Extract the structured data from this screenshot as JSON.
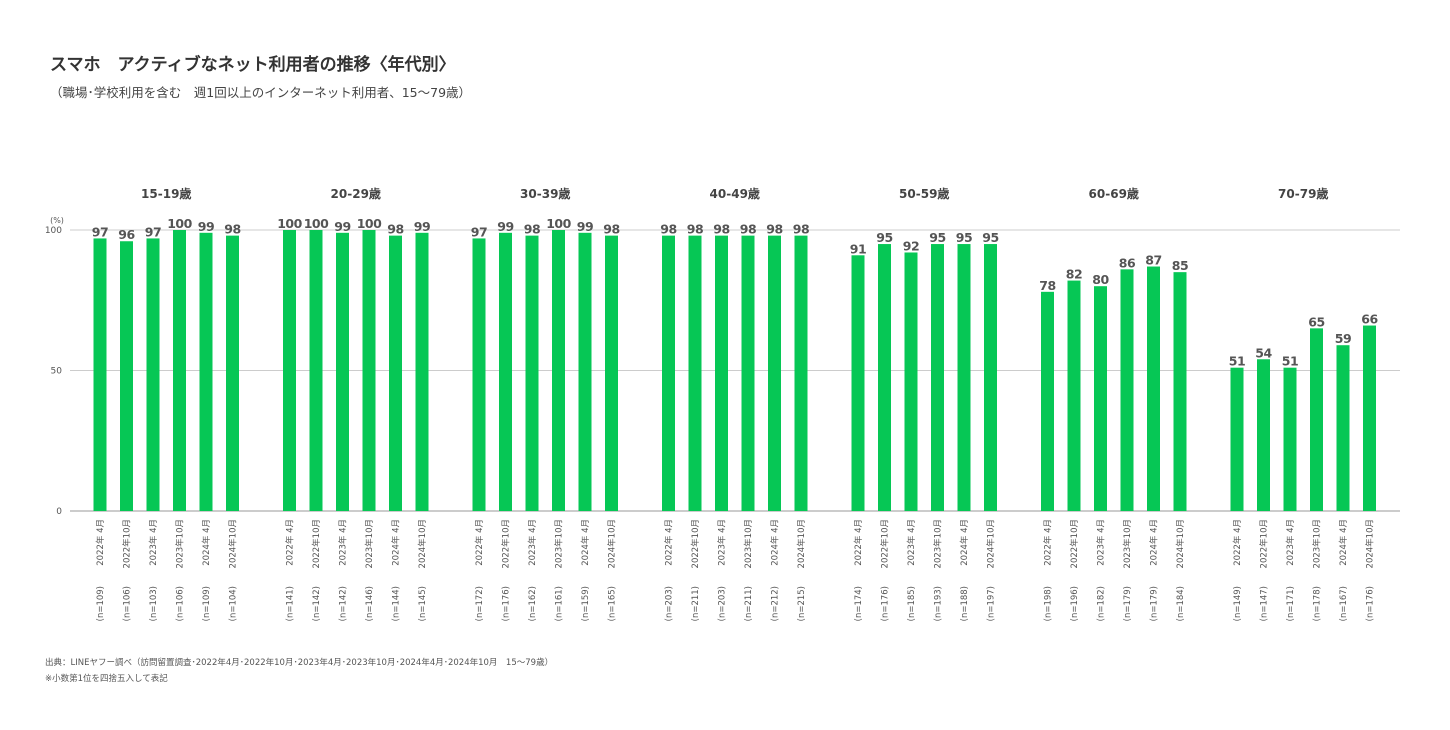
{
  "title": "スマホ　アクティブなネット利用者の推移〈年代別〉",
  "subtitle": "（職場･学校利用を含む　週1回以上のインターネット利用者、15～79歳）",
  "footnotes": {
    "source": "出典：LINEヤフー調べ（訪問留置調査･2022年4月･2022年10月･2023年4月･2023年10月･2024年4月･2024年10月　15～79歳）",
    "note": "※小数第1位を四捨五入して表記"
  },
  "colors": {
    "bar": "#06C755",
    "grid": "#cccccc",
    "label": "#555555"
  },
  "chart_data": {
    "type": "bar",
    "ylabel": "(%)",
    "ylim": [
      0,
      100
    ],
    "yticks": [
      "0",
      "50",
      "100"
    ],
    "periods": [
      "2022年 4月",
      "2022年10月",
      "2023年 4月",
      "2023年10月",
      "2024年 4月",
      "2024年10月"
    ],
    "groups": [
      {
        "name": "15-19歳",
        "values": [
          97,
          96,
          97,
          100,
          99,
          98
        ],
        "n": [
          "(n=109)",
          "(n=106)",
          "(n=103)",
          "(n=106)",
          "(n=109)",
          "(n=104)"
        ]
      },
      {
        "name": "20-29歳",
        "values": [
          100,
          100,
          99,
          100,
          98,
          99
        ],
        "n": [
          "(n=141)",
          "(n=142)",
          "(n=142)",
          "(n=146)",
          "(n=144)",
          "(n=145)"
        ]
      },
      {
        "name": "30-39歳",
        "values": [
          97,
          99,
          98,
          100,
          99,
          98
        ],
        "n": [
          "(n=172)",
          "(n=176)",
          "(n=162)",
          "(n=161)",
          "(n=159)",
          "(n=165)"
        ]
      },
      {
        "name": "40-49歳",
        "values": [
          98,
          98,
          98,
          98,
          98,
          98
        ],
        "n": [
          "(n=203)",
          "(n=211)",
          "(n=203)",
          "(n=211)",
          "(n=212)",
          "(n=215)"
        ]
      },
      {
        "name": "50-59歳",
        "values": [
          91,
          95,
          92,
          95,
          95,
          95
        ],
        "n": [
          "(n=174)",
          "(n=176)",
          "(n=185)",
          "(n=193)",
          "(n=188)",
          "(n=197)"
        ]
      },
      {
        "name": "60-69歳",
        "values": [
          78,
          82,
          80,
          86,
          87,
          85
        ],
        "n": [
          "(n=198)",
          "(n=196)",
          "(n=182)",
          "(n=179)",
          "(n=179)",
          "(n=184)"
        ]
      },
      {
        "name": "70-79歳",
        "values": [
          51,
          54,
          51,
          65,
          59,
          66
        ],
        "n": [
          "(n=149)",
          "(n=147)",
          "(n=171)",
          "(n=178)",
          "(n=167)",
          "(n=176)"
        ]
      }
    ]
  }
}
